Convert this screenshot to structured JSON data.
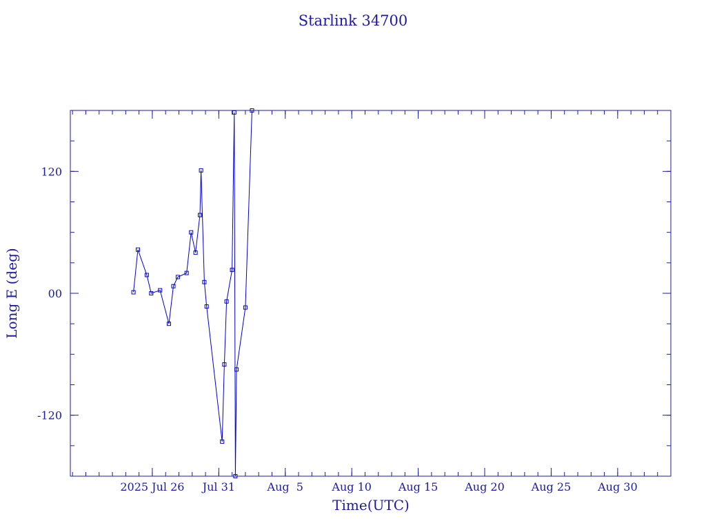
{
  "chart_data": {
    "type": "line",
    "title": "Starlink 34700",
    "xlabel": "Time(UTC)",
    "ylabel": "Long E (deg)",
    "color": "#0000c8",
    "marker": "square",
    "grid": false,
    "legend": "none",
    "x_unit": "days",
    "x_range": [
      "2025-07-19T20:00",
      "2025-09-03T00:00"
    ],
    "ylim": [
      -180,
      180
    ],
    "y_ticks": [
      {
        "value": 120,
        "label": "120"
      },
      {
        "value": 0,
        "label": "00"
      },
      {
        "value": -120,
        "label": "-120"
      }
    ],
    "x_ticks": [
      {
        "value": "2025-07-26",
        "label": "2025 Jul 26"
      },
      {
        "value": "2025-07-31",
        "label": "Jul 31"
      },
      {
        "value": "2025-08-05",
        "label": "Aug  5"
      },
      {
        "value": "2025-08-10",
        "label": "Aug 10"
      },
      {
        "value": "2025-08-15",
        "label": "Aug 15"
      },
      {
        "value": "2025-08-20",
        "label": "Aug 20"
      },
      {
        "value": "2025-08-25",
        "label": "Aug 25"
      },
      {
        "value": "2025-08-30",
        "label": "Aug 30"
      }
    ],
    "series": [
      {
        "values": [
          {
            "x": "2025-07-24T14:00",
            "y": 1
          },
          {
            "x": "2025-07-24T22:00",
            "y": 43
          },
          {
            "x": "2025-07-25T14:00",
            "y": 18
          },
          {
            "x": "2025-07-25T22:00",
            "y": 0
          },
          {
            "x": "2025-07-26T14:00",
            "y": 3
          },
          {
            "x": "2025-07-27T06:00",
            "y": -30
          },
          {
            "x": "2025-07-27T14:00",
            "y": 7
          },
          {
            "x": "2025-07-27T22:00",
            "y": 16
          },
          {
            "x": "2025-07-28T14:00",
            "y": 20
          },
          {
            "x": "2025-07-28T22:00",
            "y": 60
          },
          {
            "x": "2025-07-29T06:00",
            "y": 40
          },
          {
            "x": "2025-07-29T14:00",
            "y": 77
          },
          {
            "x": "2025-07-29T16:00",
            "y": 121
          },
          {
            "x": "2025-07-29T22:00",
            "y": 11
          },
          {
            "x": "2025-07-30T02:00",
            "y": -13
          },
          {
            "x": "2025-07-31T06:00",
            "y": -146
          },
          {
            "x": "2025-07-31T10:00",
            "y": -70
          },
          {
            "x": "2025-07-31T14:00",
            "y": -8
          },
          {
            "x": "2025-08-01T00:00",
            "y": 23
          },
          {
            "x": "2025-08-01T04:00",
            "y": 178
          },
          {
            "x": "2025-08-01T06:00",
            "y": -180
          },
          {
            "x": "2025-08-01T08:00",
            "y": -75
          },
          {
            "x": "2025-08-02T00:00",
            "y": -14
          },
          {
            "x": "2025-08-02T12:00",
            "y": 180
          }
        ]
      }
    ]
  }
}
